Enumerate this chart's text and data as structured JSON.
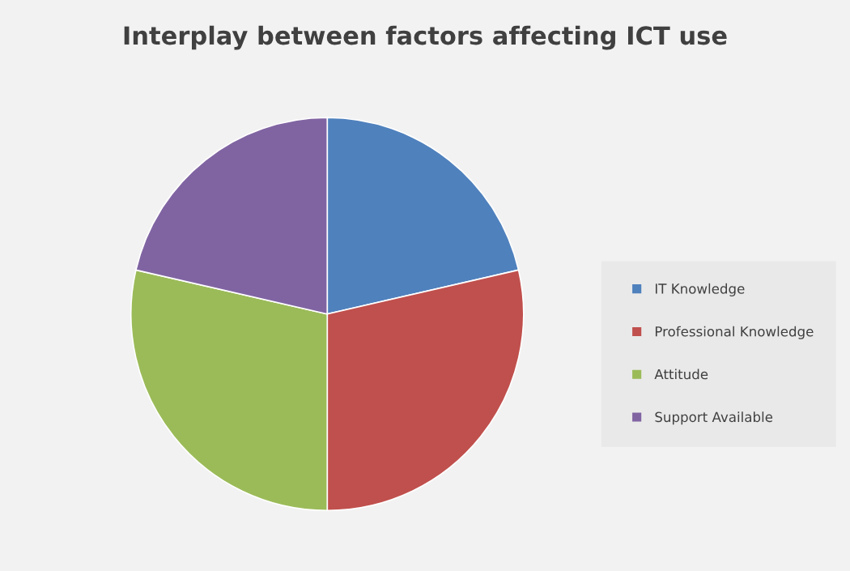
{
  "chart_data": {
    "type": "pie",
    "title": "Interplay between factors affecting ICT use",
    "categories": [
      "IT Knowledge",
      "Professional Knowledge",
      "Attitude",
      "Support Available"
    ],
    "values": [
      21.4,
      28.6,
      28.6,
      21.4
    ],
    "colors": [
      "#4f81bd",
      "#c0504d",
      "#9bbb59",
      "#8064a2"
    ],
    "legend": "right"
  }
}
